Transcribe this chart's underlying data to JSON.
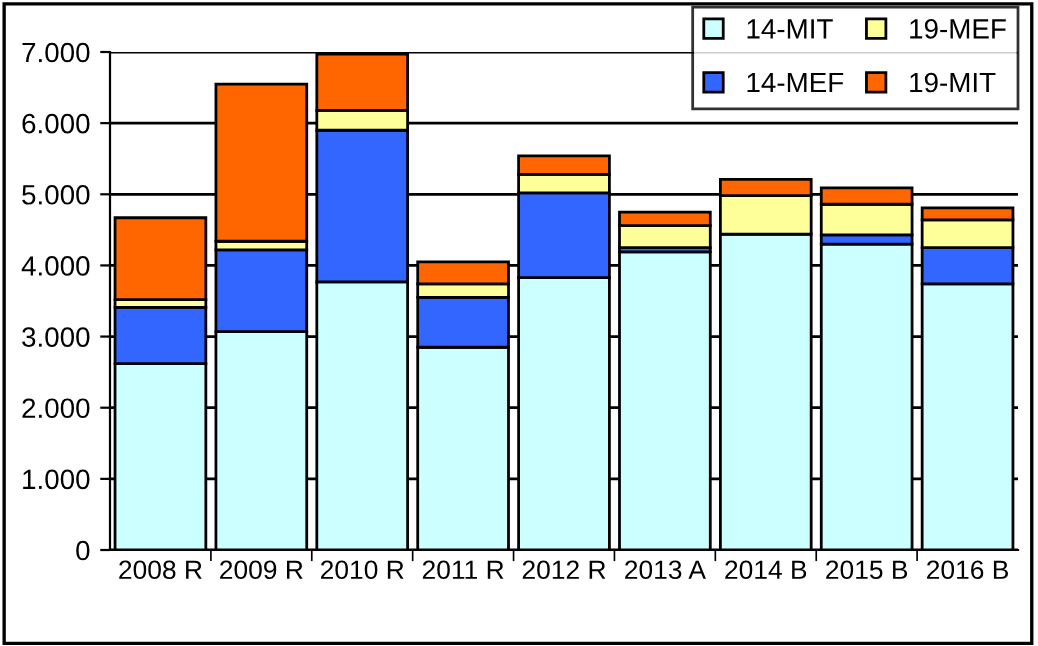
{
  "chart_data": {
    "type": "bar",
    "stacked": true,
    "categories": [
      "2008 R",
      "2009 R",
      "2010 R",
      "2011 R",
      "2012 R",
      "2013 A",
      "2014 B",
      "2015 B",
      "2016 B"
    ],
    "series": [
      {
        "name": "14-MIT",
        "color": "#ccffff",
        "values": [
          2620,
          3070,
          3770,
          2850,
          3830,
          4190,
          4440,
          4300,
          3740
        ]
      },
      {
        "name": "14-MEF",
        "color": "#3366ff",
        "values": [
          790,
          1150,
          2130,
          700,
          1190,
          60,
          0,
          130,
          510
        ]
      },
      {
        "name": "19-MEF",
        "color": "#ffff99",
        "values": [
          110,
          120,
          280,
          190,
          260,
          310,
          540,
          430,
          390
        ]
      },
      {
        "name": "19-MIT",
        "color": "#ff6600",
        "values": [
          1150,
          2210,
          790,
          310,
          260,
          190,
          230,
          230,
          170
        ]
      }
    ],
    "ylim": [
      0,
      7000
    ],
    "yticks": [
      {
        "value": 0,
        "label": "0"
      },
      {
        "value": 1000,
        "label": "1.000"
      },
      {
        "value": 2000,
        "label": "2.000"
      },
      {
        "value": 3000,
        "label": "3.000"
      },
      {
        "value": 4000,
        "label": "4.000"
      },
      {
        "value": 5000,
        "label": "5.000"
      },
      {
        "value": 6000,
        "label": "6.000"
      },
      {
        "value": 7000,
        "label": "7.000"
      }
    ],
    "grid": "y",
    "legend": "top right"
  }
}
